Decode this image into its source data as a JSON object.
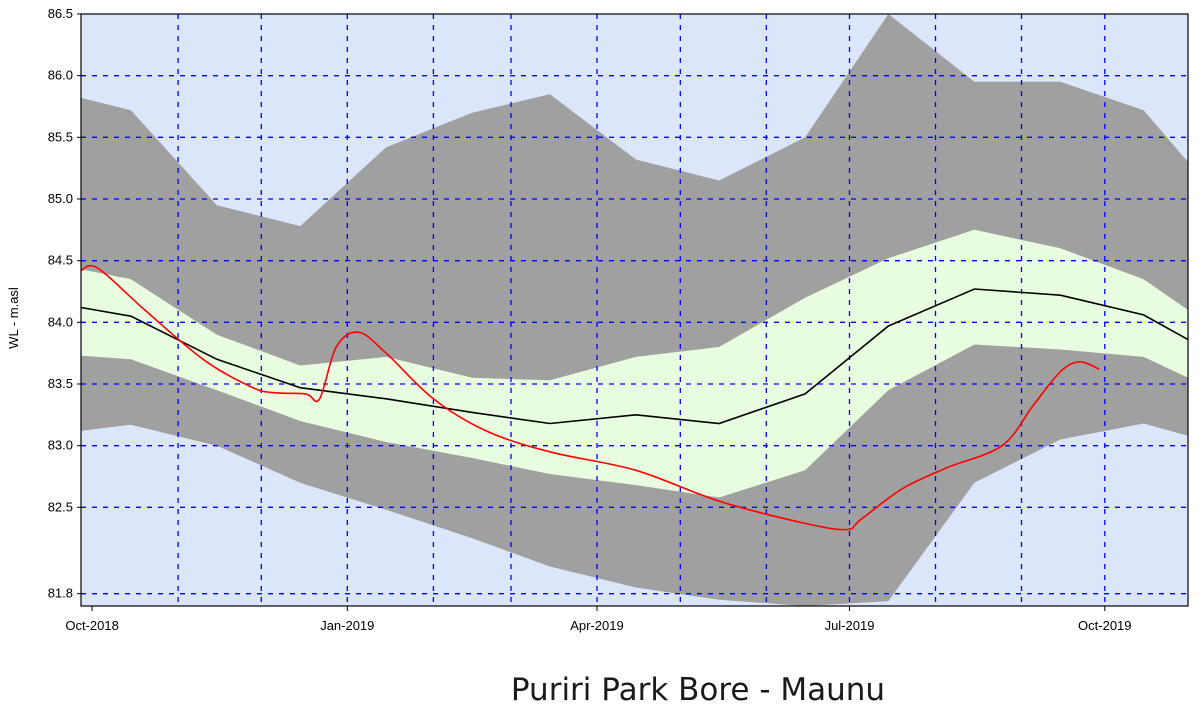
{
  "caption": "Puriri Park Bore - Maunu",
  "chart_data": {
    "type": "area",
    "title": "",
    "ylabel": "WL - m.asl",
    "xlabel": "",
    "x_range": [
      "2018-09-27",
      "2019-10-31"
    ],
    "ylim": [
      81.7,
      86.5
    ],
    "x_tick_labels": [
      {
        "date": "2018-10-01",
        "label": "Oct-2018"
      },
      {
        "date": "2019-01-01",
        "label": "Jan-2019"
      },
      {
        "date": "2019-04-01",
        "label": "Apr-2019"
      },
      {
        "date": "2019-07-01",
        "label": "Jul-2019"
      },
      {
        "date": "2019-10-01",
        "label": "Oct-2019"
      }
    ],
    "x_gridlines": [
      "2018-11-01",
      "2018-12-01",
      "2019-01-01",
      "2019-02-01",
      "2019-03-01",
      "2019-04-01",
      "2019-05-01",
      "2019-06-01",
      "2019-07-01",
      "2019-08-01",
      "2019-09-01",
      "2019-10-01"
    ],
    "y_ticks": [
      81.8,
      82.5,
      83.0,
      83.5,
      84.0,
      84.5,
      85.0,
      85.5,
      86.0,
      86.5
    ],
    "y_tick_labels": [
      "81.8",
      "82.5",
      "83.0",
      "83.5",
      "84.0",
      "84.5",
      "85.0",
      "85.5",
      "86.0",
      "86.5"
    ],
    "grid": true,
    "colors": {
      "background": "#dbe6fb",
      "grid": "#0000ff",
      "outer_band": "#a0a0a0",
      "inner_band": "#e8fce0",
      "median_line": "#000000",
      "observed_line": "#ff0000"
    },
    "bands": {
      "x": [
        "2018-09-27",
        "2018-10-15",
        "2018-11-15",
        "2018-12-15",
        "2019-01-15",
        "2019-02-15",
        "2019-03-15",
        "2019-04-15",
        "2019-05-15",
        "2019-06-15",
        "2019-07-15",
        "2019-08-15",
        "2019-09-15",
        "2019-10-15",
        "2019-10-31"
      ],
      "max": [
        85.82,
        85.72,
        84.95,
        84.78,
        85.42,
        85.7,
        85.85,
        85.32,
        85.15,
        85.5,
        86.5,
        85.95,
        85.95,
        85.72,
        85.3
      ],
      "upper": [
        84.43,
        84.35,
        83.9,
        83.65,
        83.72,
        83.55,
        83.53,
        83.72,
        83.8,
        84.2,
        84.52,
        84.75,
        84.6,
        84.35,
        84.1
      ],
      "lower": [
        83.73,
        83.7,
        83.45,
        83.2,
        83.03,
        82.9,
        82.77,
        82.68,
        82.58,
        82.8,
        83.45,
        83.82,
        83.78,
        83.72,
        83.55
      ],
      "min": [
        83.12,
        83.17,
        83.0,
        82.7,
        82.48,
        82.25,
        82.02,
        81.85,
        81.75,
        81.7,
        81.74,
        82.7,
        83.05,
        83.18,
        83.08
      ]
    },
    "series": [
      {
        "x": [
          "2018-09-27",
          "2018-10-15",
          "2018-11-15",
          "2018-12-15",
          "2019-01-15",
          "2019-02-15",
          "2019-03-15",
          "2019-04-15",
          "2019-05-15",
          "2019-06-15",
          "2019-07-15",
          "2019-08-15",
          "2019-09-15",
          "2019-10-15",
          "2019-10-31"
        ],
        "values": [
          84.12,
          84.05,
          83.7,
          83.47,
          83.38,
          83.27,
          83.18,
          83.25,
          83.18,
          83.42,
          83.97,
          84.27,
          84.22,
          84.06,
          83.86
        ]
      },
      {
        "x": [
          "2018-09-27",
          "2018-10-03",
          "2018-10-20",
          "2018-11-10",
          "2018-11-27",
          "2018-12-05",
          "2018-12-17",
          "2018-12-22",
          "2018-12-28",
          "2019-01-05",
          "2019-01-15",
          "2019-02-01",
          "2019-02-20",
          "2019-03-15",
          "2019-04-15",
          "2019-05-15",
          "2019-06-15",
          "2019-06-30",
          "2019-07-05",
          "2019-07-20",
          "2019-08-05",
          "2019-08-25",
          "2019-09-05",
          "2019-09-15",
          "2019-09-22",
          "2019-09-29"
        ],
        "values": [
          84.42,
          84.44,
          84.1,
          83.7,
          83.48,
          83.43,
          83.42,
          83.38,
          83.8,
          83.92,
          83.75,
          83.38,
          83.12,
          82.95,
          82.8,
          82.55,
          82.37,
          82.32,
          82.4,
          82.65,
          82.82,
          83.0,
          83.32,
          83.6,
          83.68,
          83.62
        ]
      }
    ]
  }
}
